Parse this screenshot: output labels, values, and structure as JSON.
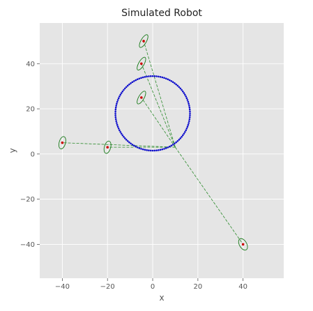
{
  "chart_data": {
    "type": "scatter",
    "title": "Simulated Robot",
    "xlabel": "x",
    "ylabel": "y",
    "xlim": [
      -50,
      58
    ],
    "ylim": [
      -55,
      58
    ],
    "x_ticks": [
      -40,
      -20,
      0,
      20,
      40
    ],
    "y_ticks": [
      -40,
      -20,
      0,
      20,
      40
    ],
    "x_tick_labels": [
      "−40",
      "−20",
      "0",
      "20",
      "40"
    ],
    "y_tick_labels": [
      "−40",
      "−20",
      "0",
      "20",
      "40"
    ],
    "grid": true,
    "legend": "none",
    "colors": {
      "background": "#e5e5e5",
      "grid": "#ffffff",
      "trajectory": "#1010cc",
      "landmark": "#cc0000",
      "ellipse": "#1a7a1a",
      "sight_line": "#2a8a2a"
    },
    "trajectory": {
      "center": [
        0,
        18
      ],
      "radius": 16.5,
      "num_points": 120
    },
    "robot_position": [
      10,
      3
    ],
    "landmarks": [
      {
        "x": -4,
        "y": 50,
        "ellipse": {
          "rx": 3.2,
          "ry": 1.2,
          "angle_deg": 60
        }
      },
      {
        "x": -5,
        "y": 40,
        "ellipse": {
          "rx": 3.2,
          "ry": 1.2,
          "angle_deg": 60
        }
      },
      {
        "x": -5,
        "y": 25,
        "ellipse": {
          "rx": 3.2,
          "ry": 1.2,
          "angle_deg": 60
        }
      },
      {
        "x": -40,
        "y": 5,
        "ellipse": {
          "rx": 2.8,
          "ry": 1.4,
          "angle_deg": 75
        }
      },
      {
        "x": -20,
        "y": 3,
        "ellipse": {
          "rx": 2.8,
          "ry": 1.4,
          "angle_deg": 75
        }
      },
      {
        "x": 40,
        "y": -40,
        "ellipse": {
          "rx": 2.8,
          "ry": 1.6,
          "angle_deg": -60
        }
      }
    ]
  }
}
